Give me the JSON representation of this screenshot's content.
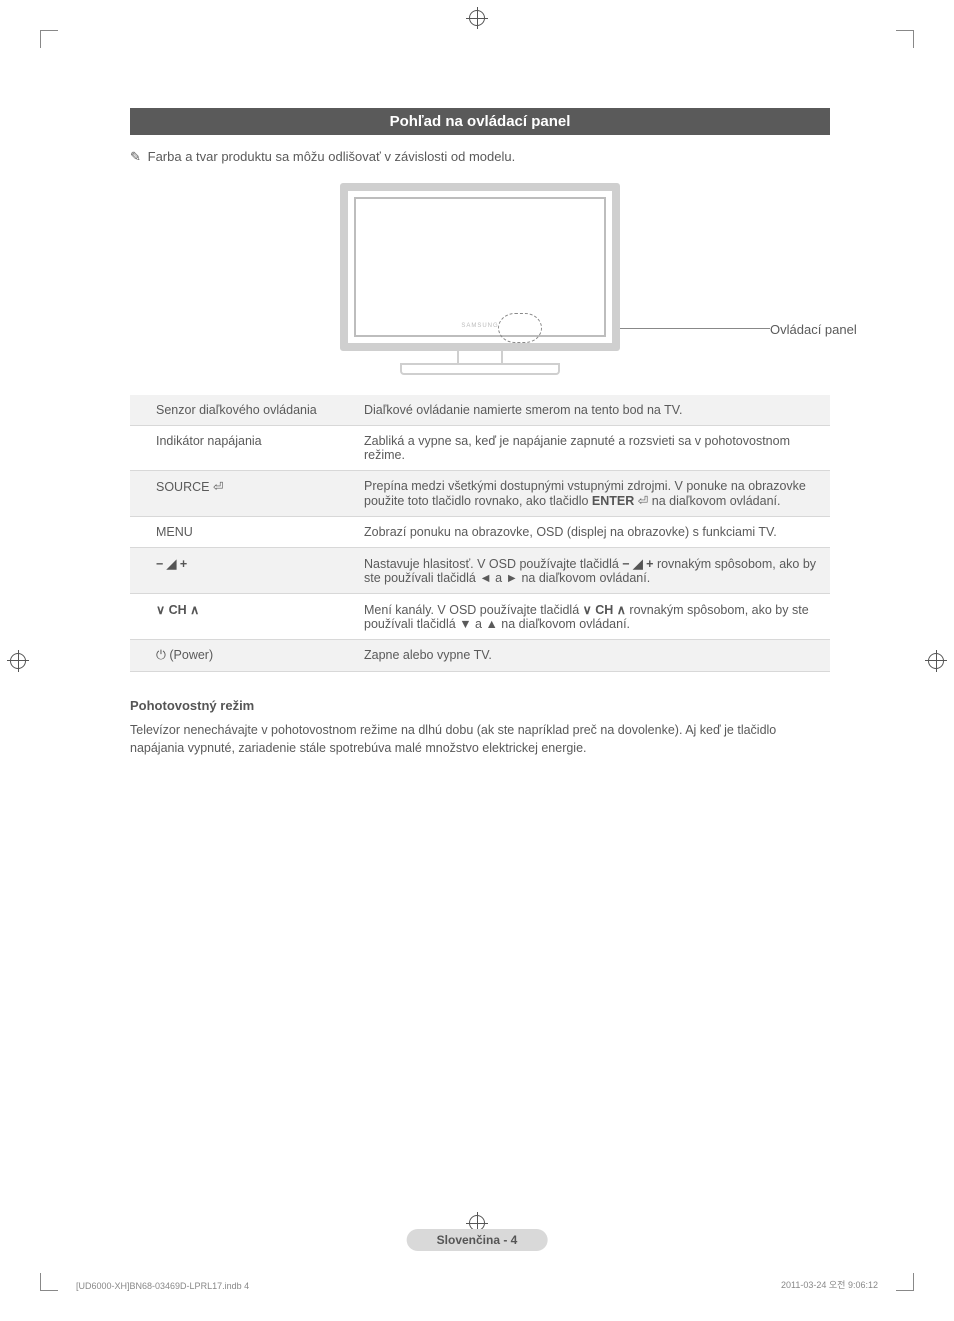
{
  "registration": {},
  "section": {
    "title": "Pohľad na ovládací panel"
  },
  "note": {
    "icon": "✎",
    "text": "Farba a tvar produktu sa môžu odlišovať v závislosti od modelu."
  },
  "diagram": {
    "logo": "SAMSUNG",
    "lead_label": "Ovládací panel"
  },
  "rows": [
    {
      "label_html": "Senzor diaľkového ovládania",
      "desc_html": "Diaľkové ovládanie namierte smerom na tento bod na TV."
    },
    {
      "label_html": "Indikátor napájania",
      "desc_html": "Zabliká a vypne sa, keď je napájanie zapnuté a rozsvieti sa v pohotovostnom režime."
    },
    {
      "label_html": "SOURCE <span class='glyph'>⏎</span>",
      "desc_html": "Prepína medzi všetkými dostupnými vstupnými zdrojmi. V ponuke na obrazovke použite toto tlačidlo rovnako, ako tlačidlo <span class='bold'>ENTER</span> <span class='glyph'>⏎</span> na diaľkovom ovládaní."
    },
    {
      "label_html": "MENU",
      "desc_html": "Zobrazí ponuku na obrazovke, OSD (displej na obrazovke) s funkciami TV."
    },
    {
      "label_html": "<span class='glyph bold'>− ◢ +</span>",
      "desc_html": "Nastavuje hlasitosť. V OSD používajte tlačidlá <span class='glyph bold'>− ◢ +</span> rovnakým spôsobom, ako by ste používali tlačidlá ◄ a ► na diaľkovom ovládaní."
    },
    {
      "label_html": "<span class='glyph bold'>∨ CH ∧</span>",
      "desc_html": "Mení kanály. V OSD používajte tlačidlá <span class='glyph bold'>∨ CH ∧</span> rovnakým spôsobom, ako by ste používali tlačidlá ▼ a ▲ na diaľkovom ovládaní."
    },
    {
      "label_html": "<span class='glyph'>⏻</span> (Power)",
      "desc_html": "Zapne alebo vypne TV."
    }
  ],
  "standby": {
    "heading": "Pohotovostný režim",
    "body": "Televízor nenechávajte v pohotovostnom režime na dlhú dobu (ak ste napríklad preč na dovolenke). Aj keď je tlačidlo napájania vypnuté, zariadenie stále spotrebúva malé množstvo elektrickej energie."
  },
  "footer": {
    "center": "Slovenčina - 4",
    "left": "[UD6000-XH]BN68-03469D-LPRL17.indb   4",
    "right": "2011-03-24   오전 9:06:12"
  },
  "colors": {
    "section_bg": "#5a5a5a",
    "text": "#5a5a5a",
    "row_alt": "#f2f2f2",
    "footer_bg": "#d9d9d9"
  }
}
